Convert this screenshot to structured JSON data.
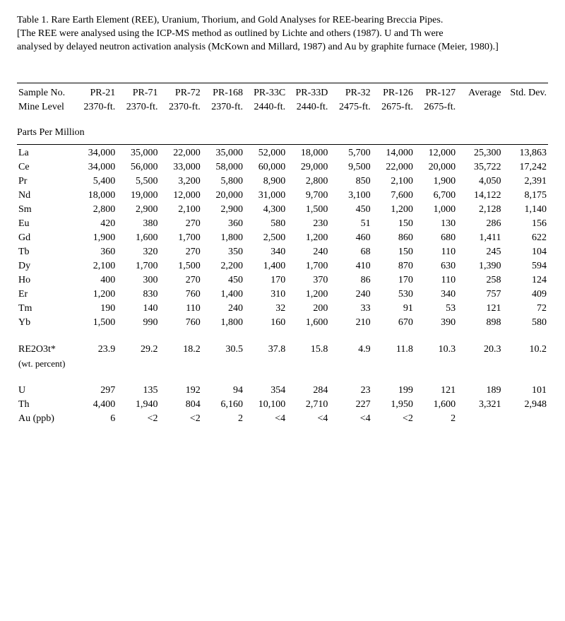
{
  "title": {
    "line1": "Table 1.  Rare Earth Element (REE), Uranium, Thorium, and Gold Analyses for REE-bearing Breccia Pipes.",
    "line2": "[The REE were analysed using the ICP-MS method as outlined by Lichte and others (1987).  U and Th were",
    "line3": "analysed by delayed neutron activation analysis (McKown and Millard, 1987) and Au by graphite furnace (Meier, 1980).]"
  },
  "headers": {
    "sample_no_label": "Sample No.",
    "mine_level_label": "Mine Level",
    "samples": [
      "PR-21",
      "PR-71",
      "PR-72",
      "PR-168",
      "PR-33C",
      "PR-33D",
      "PR-32",
      "PR-126",
      "PR-127"
    ],
    "levels": [
      "2370-ft.",
      "2370-ft.",
      "2370-ft.",
      "2370-ft.",
      "2440-ft.",
      "2440-ft.",
      "2475-ft.",
      "2675-ft.",
      "2675-ft."
    ],
    "avg_label": "Average",
    "std_label": "Std. Dev."
  },
  "section_ppm": "Parts Per Million",
  "rows_ppm": [
    {
      "el": "La",
      "v": [
        "34,000",
        "35,000",
        "22,000",
        "35,000",
        "52,000",
        "18,000",
        "5,700",
        "14,000",
        "12,000",
        "25,300",
        "13,863"
      ]
    },
    {
      "el": "Ce",
      "v": [
        "34,000",
        "56,000",
        "33,000",
        "58,000",
        "60,000",
        "29,000",
        "9,500",
        "22,000",
        "20,000",
        "35,722",
        "17,242"
      ]
    },
    {
      "el": "Pr",
      "v": [
        "5,400",
        "5,500",
        "3,200",
        "5,800",
        "8,900",
        "2,800",
        "850",
        "2,100",
        "1,900",
        "4,050",
        "2,391"
      ]
    },
    {
      "el": "Nd",
      "v": [
        "18,000",
        "19,000",
        "12,000",
        "20,000",
        "31,000",
        "9,700",
        "3,100",
        "7,600",
        "6,700",
        "14,122",
        "8,175"
      ]
    },
    {
      "el": "Sm",
      "v": [
        "2,800",
        "2,900",
        "2,100",
        "2,900",
        "4,300",
        "1,500",
        "450",
        "1,200",
        "1,000",
        "2,128",
        "1,140"
      ]
    },
    {
      "el": "Eu",
      "v": [
        "420",
        "380",
        "270",
        "360",
        "580",
        "230",
        "51",
        "150",
        "130",
        "286",
        "156"
      ]
    },
    {
      "el": "Gd",
      "v": [
        "1,900",
        "1,600",
        "1,700",
        "1,800",
        "2,500",
        "1,200",
        "460",
        "860",
        "680",
        "1,411",
        "622"
      ]
    },
    {
      "el": "Tb",
      "v": [
        "360",
        "320",
        "270",
        "350",
        "340",
        "240",
        "68",
        "150",
        "110",
        "245",
        "104"
      ]
    },
    {
      "el": "Dy",
      "v": [
        "2,100",
        "1,700",
        "1,500",
        "2,200",
        "1,400",
        "1,700",
        "410",
        "870",
        "630",
        "1,390",
        "594"
      ]
    },
    {
      "el": "Ho",
      "v": [
        "400",
        "300",
        "270",
        "450",
        "170",
        "370",
        "86",
        "170",
        "110",
        "258",
        "124"
      ]
    },
    {
      "el": "Er",
      "v": [
        "1,200",
        "830",
        "760",
        "1,400",
        "310",
        "1,200",
        "240",
        "530",
        "340",
        "757",
        "409"
      ]
    },
    {
      "el": "Tm",
      "v": [
        "190",
        "140",
        "110",
        "240",
        "32",
        "200",
        "33",
        "91",
        "53",
        "121",
        "72"
      ]
    },
    {
      "el": "Yb",
      "v": [
        "1,500",
        "990",
        "760",
        "1,800",
        "160",
        "1,600",
        "210",
        "670",
        "390",
        "898",
        "580"
      ]
    }
  ],
  "re2o3": {
    "label": "RE2O3t*",
    "sub": "(wt. percent)",
    "v": [
      "23.9",
      "29.2",
      "18.2",
      "30.5",
      "37.8",
      "15.8",
      "4.9",
      "11.8",
      "10.3",
      "20.3",
      "10.2"
    ]
  },
  "rows_other": [
    {
      "el": "U",
      "v": [
        "297",
        "135",
        "192",
        "94",
        "354",
        "284",
        "23",
        "199",
        "121",
        "189",
        "101"
      ]
    },
    {
      "el": "Th",
      "v": [
        "4,400",
        "1,940",
        "804",
        "6,160",
        "10,100",
        "2,710",
        "227",
        "1,950",
        "1,600",
        "3,321",
        "2,948"
      ]
    },
    {
      "el": "Au (ppb)",
      "v": [
        "6",
        "<2",
        "<2",
        "2",
        "<4",
        "<4",
        "<4",
        "<2",
        "2",
        "",
        ""
      ]
    }
  ]
}
